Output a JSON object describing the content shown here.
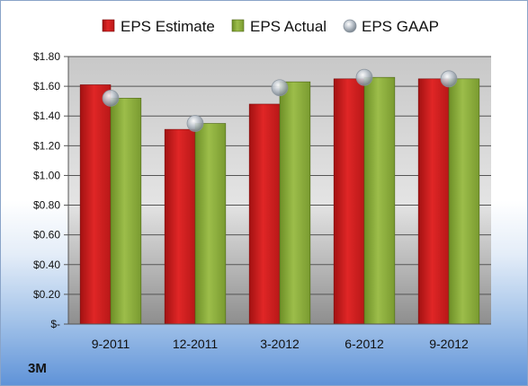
{
  "chart_data": {
    "type": "bar",
    "categories": [
      "9-2011",
      "12-2011",
      "3-2012",
      "6-2012",
      "9-2012"
    ],
    "series": [
      {
        "name": "EPS Estimate",
        "kind": "bar",
        "color": "#d42020",
        "values": [
          1.61,
          1.31,
          1.48,
          1.65,
          1.65
        ]
      },
      {
        "name": "EPS Actual",
        "kind": "bar",
        "color": "#8fb13b",
        "values": [
          1.52,
          1.35,
          1.63,
          1.66,
          1.65
        ]
      },
      {
        "name": "EPS GAAP",
        "kind": "marker",
        "color": "#b9c2cc",
        "values": [
          1.52,
          1.35,
          1.59,
          1.66,
          1.65
        ]
      }
    ],
    "ylim": [
      0,
      1.8
    ],
    "yticks": [
      0,
      0.2,
      0.4,
      0.6,
      0.8,
      1.0,
      1.2,
      1.4,
      1.6,
      1.8
    ],
    "ytick_labels": [
      "$-",
      "$0.20",
      "$0.40",
      "$0.60",
      "$0.80",
      "$1.00",
      "$1.20",
      "$1.40",
      "$1.60",
      "$1.80"
    ],
    "grid": true,
    "legend_position": "top"
  },
  "company": "3M"
}
